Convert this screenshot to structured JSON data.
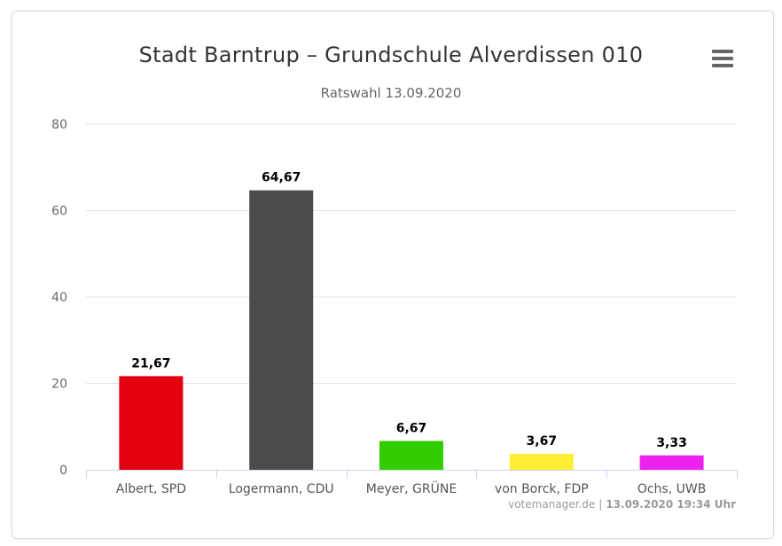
{
  "chart_data": {
    "type": "bar",
    "title": "Stadt Barntrup – Grundschule Alverdissen 010",
    "subtitle": "Ratswahl 13.09.2020",
    "categories": [
      "Albert, SPD",
      "Logermann, CDU",
      "Meyer, GRÜNE",
      "von Borck, FDP",
      "Ochs, UWB"
    ],
    "values": [
      21.67,
      64.67,
      6.67,
      3.67,
      3.33
    ],
    "data_labels": [
      "21,67",
      "64,67",
      "6,67",
      "3,67",
      "3,33"
    ],
    "colors": [
      "#e3000f",
      "#4b4b4b",
      "#33cc00",
      "#ffee33",
      "#ee22ee"
    ],
    "ylim": [
      0,
      80
    ],
    "yticks": [
      0,
      20,
      40,
      60,
      80
    ],
    "grid": true,
    "legend": "none"
  },
  "credits": {
    "site": "votemanager.de",
    "separator": "|",
    "timestamp": "13.09.2020 19:34 Uhr"
  },
  "menu": {
    "icon": "hamburger-menu-icon"
  }
}
